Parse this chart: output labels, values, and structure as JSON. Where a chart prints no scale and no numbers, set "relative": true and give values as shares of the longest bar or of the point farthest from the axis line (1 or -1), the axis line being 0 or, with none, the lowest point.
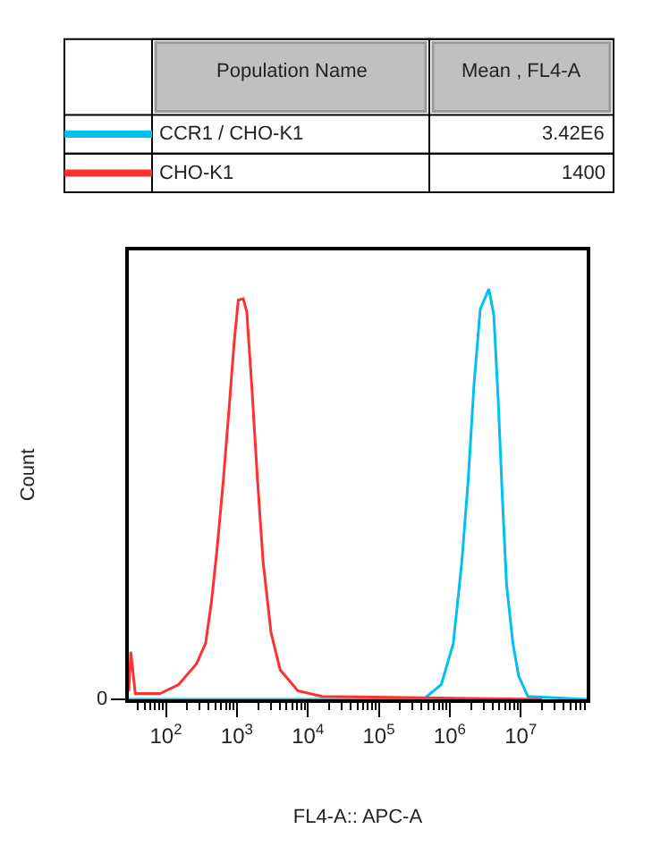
{
  "chart_data": {
    "type": "line",
    "relative": true,
    "log": "x",
    "xlabel": "FL4-A:: APC-A",
    "ylabel": "Count",
    "xlim": [
      30,
      85000000
    ],
    "xticks": [
      {
        "value": 100,
        "label": "10$^{2}$"
      },
      {
        "value": 1000,
        "label": "10$^{3}$"
      },
      {
        "value": 10000,
        "label": "10$^{4}$"
      },
      {
        "value": 100000,
        "label": "10$^{5}$"
      },
      {
        "value": 1000000,
        "label": "10$^{6}$"
      },
      {
        "value": 10000000,
        "label": "10$^{7}$"
      },
      {
        "value": 40,
        "label": null
      },
      {
        "value": 50,
        "label": null
      },
      {
        "value": 60,
        "label": null
      },
      {
        "value": 70,
        "label": null
      },
      {
        "value": 80,
        "label": null
      },
      {
        "value": 90,
        "label": null
      },
      {
        "value": 200,
        "label": null
      },
      {
        "value": 300,
        "label": null
      },
      {
        "value": 400,
        "label": null
      },
      {
        "value": 500,
        "label": null
      },
      {
        "value": 600,
        "label": null
      },
      {
        "value": 700,
        "label": null
      },
      {
        "value": 800,
        "label": null
      },
      {
        "value": 900,
        "label": null
      },
      {
        "value": 2000,
        "label": null
      },
      {
        "value": 3000,
        "label": null
      },
      {
        "value": 4000,
        "label": null
      },
      {
        "value": 5000,
        "label": null
      },
      {
        "value": 6000,
        "label": null
      },
      {
        "value": 7000,
        "label": null
      },
      {
        "value": 8000,
        "label": null
      },
      {
        "value": 9000,
        "label": null
      },
      {
        "value": 20000,
        "label": null
      },
      {
        "value": 30000,
        "label": null
      },
      {
        "value": 40000,
        "label": null
      },
      {
        "value": 50000,
        "label": null
      },
      {
        "value": 60000,
        "label": null
      },
      {
        "value": 70000,
        "label": null
      },
      {
        "value": 80000,
        "label": null
      },
      {
        "value": 90000,
        "label": null
      },
      {
        "value": 200000,
        "label": null
      },
      {
        "value": 300000,
        "label": null
      },
      {
        "value": 400000,
        "label": null
      },
      {
        "value": 500000,
        "label": null
      },
      {
        "value": 600000,
        "label": null
      },
      {
        "value": 700000,
        "label": null
      },
      {
        "value": 800000,
        "label": null
      },
      {
        "value": 900000,
        "label": null
      },
      {
        "value": 2000000,
        "label": null
      },
      {
        "value": 3000000,
        "label": null
      },
      {
        "value": 4000000,
        "label": null
      },
      {
        "value": 5000000,
        "label": null
      },
      {
        "value": 6000000,
        "label": null
      },
      {
        "value": 7000000,
        "label": null
      },
      {
        "value": 8000000,
        "label": null
      },
      {
        "value": 9000000,
        "label": null
      },
      {
        "value": 20000000,
        "label": null
      },
      {
        "value": 30000000,
        "label": null
      },
      {
        "value": 40000000,
        "label": null
      },
      {
        "value": 50000000,
        "label": null
      },
      {
        "value": 60000000,
        "label": null
      },
      {
        "value": 70000000,
        "label": null
      },
      {
        "value": 80000000,
        "label": null
      }
    ],
    "legend": "top",
    "marker": "none",
    "line_style": "solid",
    "annotations": [
      "Population Name",
      "Mean , FL4-A",
      "3.42E6",
      "1400",
      "0"
    ],
    "series": [
      {
        "name": "CCR1 / CHO-K1",
        "color": "#00c0ef",
        "x": [
          30,
          427000,
          759000,
          1120000,
          1480000,
          1820000,
          2190000,
          2690000,
          3550000,
          4170000,
          4790000,
          5500000,
          6310000,
          7760000,
          9330000,
          12600000,
          85000000
        ],
        "values": [
          0,
          0,
          0.036,
          0.136,
          0.336,
          0.536,
          0.765,
          0.951,
          1.0,
          0.937,
          0.737,
          0.494,
          0.279,
          0.136,
          0.057,
          0.007,
          0
        ]
      },
      {
        "name": "CHO-K1",
        "color": "#ff3030",
        "x": [
          30,
          32,
          37,
          83,
          151,
          269,
          363,
          437,
          525,
          646,
          776,
          912,
          1047,
          1230,
          1380,
          1620,
          1950,
          2340,
          3020,
          4070,
          7240,
          15800,
          20000000
        ],
        "values": [
          0.02,
          0.116,
          0.014,
          0.014,
          0.036,
          0.086,
          0.137,
          0.236,
          0.365,
          0.536,
          0.708,
          0.866,
          0.973,
          0.976,
          0.944,
          0.765,
          0.536,
          0.336,
          0.164,
          0.072,
          0.021,
          0.007,
          0
        ]
      }
    ]
  }
}
